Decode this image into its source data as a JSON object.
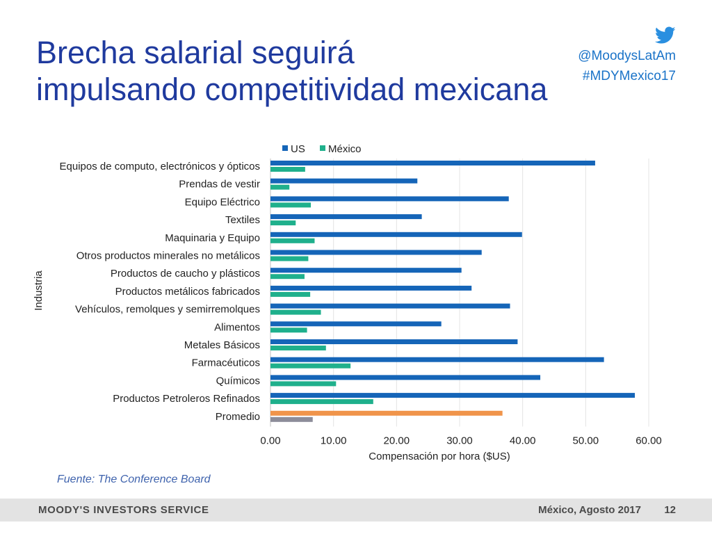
{
  "slide": {
    "title_line1": "Brecha salarial seguirá",
    "title_line2": "impulsando competitividad mexicana",
    "social_handle": "@MoodysLatAm",
    "social_hashtag": "#MDYMexico17",
    "social_icon": "twitter-bird-icon",
    "source": "Fuente: The Conference Board"
  },
  "footer": {
    "brand": "MOODY'S INVESTORS SERVICE",
    "date": "México, Agosto 2017",
    "page": "12"
  },
  "colors": {
    "title": "#1f3a9e",
    "us": "#1565b8",
    "mexico": "#1fb08c",
    "promedio_us": "#f0944a",
    "promedio_mexico": "#8c8c99"
  },
  "chart_data": {
    "type": "bar",
    "orientation": "horizontal",
    "xlabel": "Compensación por hora ($US)",
    "ylabel": "Industria",
    "xlim": [
      0,
      60
    ],
    "x_ticks": [
      "0.00",
      "10.00",
      "20.00",
      "30.00",
      "40.00",
      "50.00",
      "60.00"
    ],
    "grid": true,
    "legend_position": "top",
    "categories": [
      "Equipos de computo, electrónicos y ópticos",
      "Prendas de vestir",
      "Equipo Eléctrico",
      "Textiles",
      "Maquinaria y Equipo",
      "Otros productos minerales no metálicos",
      "Productos de caucho y plásticos",
      "Productos metálicos fabricados",
      "Vehículos, remolques y semirremolques",
      "Alimentos",
      "Metales Básicos",
      "Farmacéuticos",
      "Químicos",
      "Productos Petroleros Refinados",
      "Promedio"
    ],
    "series": [
      {
        "name": "US",
        "values": [
          51.5,
          23.3,
          37.8,
          24.0,
          39.9,
          33.5,
          30.3,
          31.9,
          38.0,
          27.1,
          39.2,
          52.9,
          42.8,
          57.8,
          36.8
        ]
      },
      {
        "name": "México",
        "values": [
          5.5,
          3.0,
          6.4,
          4.0,
          7.0,
          6.0,
          5.4,
          6.3,
          8.0,
          5.8,
          8.8,
          12.7,
          10.4,
          16.3,
          6.7
        ]
      }
    ]
  }
}
